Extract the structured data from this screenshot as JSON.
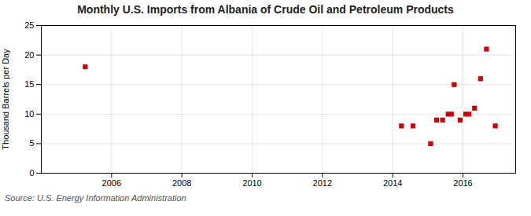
{
  "chart_data": {
    "type": "scatter",
    "title": "Monthly U.S. Imports from Albania of Crude Oil and Petroleum Products",
    "ylabel": "Thousand Barrels per Day",
    "annotations": [
      "Source: U.S. Energy Information Administration"
    ],
    "x": [
      2005.25,
      2014.25,
      2014.58,
      2015.08,
      2015.25,
      2015.42,
      2015.58,
      2015.67,
      2015.75,
      2015.92,
      2016.08,
      2016.17,
      2016.33,
      2016.5,
      2016.67,
      2016.92
    ],
    "values": [
      18,
      8,
      8,
      5,
      9,
      9,
      10,
      10,
      15,
      9,
      10,
      10,
      11,
      16,
      21,
      8
    ],
    "color": "#cc0000",
    "marker": "square",
    "xlim": [
      2004.0,
      2017.5
    ],
    "xticks": [
      2006,
      2008,
      2010,
      2012,
      2014,
      2016
    ],
    "ylim": [
      0,
      25
    ],
    "yticks": [
      0,
      5,
      10,
      15,
      20,
      25
    ],
    "grid": true
  }
}
